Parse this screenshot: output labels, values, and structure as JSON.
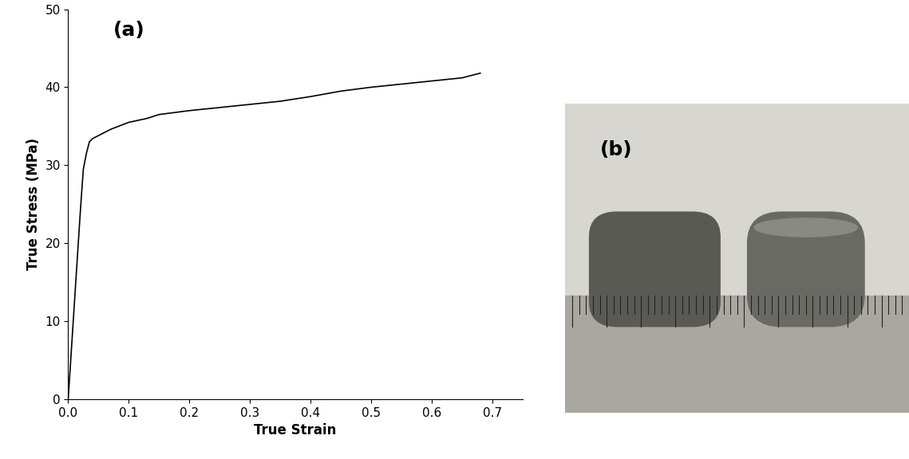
{
  "chart_data": {
    "type": "line",
    "annotation": "(a)",
    "x_label": "True Strain",
    "y_label": "True Stress (MPa)",
    "color": "#000000",
    "line_style": "solid",
    "x": [
      0.0,
      0.01,
      0.02,
      0.025,
      0.03,
      0.035,
      0.04,
      0.05,
      0.07,
      0.1,
      0.13,
      0.15,
      0.2,
      0.25,
      0.3,
      0.35,
      0.4,
      0.45,
      0.5,
      0.55,
      0.6,
      0.65,
      0.68
    ],
    "values": [
      0.0,
      12.0,
      24.0,
      29.5,
      31.5,
      33.0,
      33.4,
      33.8,
      34.6,
      35.5,
      36.0,
      36.5,
      37.0,
      37.4,
      37.8,
      38.2,
      38.8,
      39.5,
      40.0,
      40.4,
      40.8,
      41.2,
      41.8
    ],
    "xlim": [
      0.0,
      0.75
    ],
    "xticks": [
      {
        "value": 0.0,
        "label": "0.0"
      },
      0.1,
      0.2,
      0.3,
      0.4,
      0.5,
      0.6,
      0.7
    ],
    "ylim": [
      0,
      50
    ],
    "yticks": [
      0,
      10,
      20,
      30,
      40,
      50
    ],
    "grid": false
  },
  "photo": {
    "label": "(b)"
  }
}
